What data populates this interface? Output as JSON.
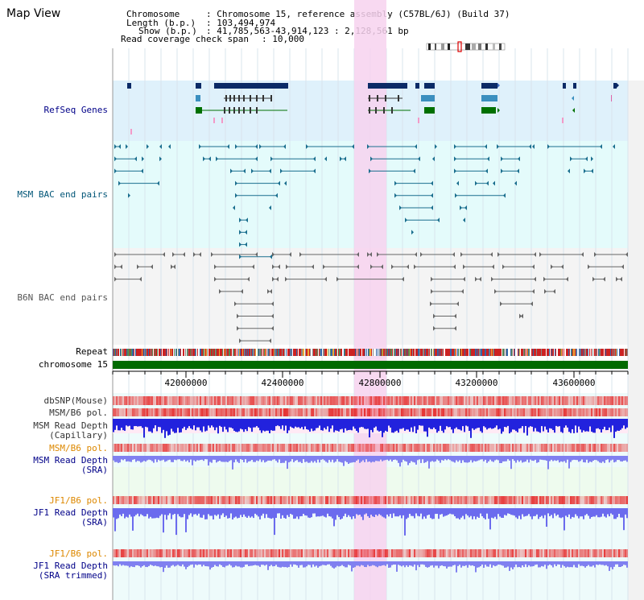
{
  "app_title": "Map View",
  "header": {
    "chromosome_key": "Chromosome",
    "chromosome_value": ": Chromosome 15, reference assembly (C57BL/6J) (Build 37)",
    "length_key": "Length (b.p.)",
    "length_value": ": 103,494,974",
    "show_key": "Show (b.p.)",
    "show_value": ": 41,785,563-43,914,123 : 2,128,561 bp",
    "coverage_key": "Read coverage check span",
    "coverage_value": ": 10,000"
  },
  "tracks": {
    "refseq": "RefSeq Genes",
    "msm_bac": "MSM BAC end pairs",
    "b6n_bac": "B6N BAC end pairs",
    "repeat": "Repeat",
    "chromosome": "chromosome 15",
    "dbsnp": "dbSNP(Mouse)",
    "msm_b6_pol_1": "MSM/B6 pol.",
    "msm_depth_cap_1": "MSM Read Depth",
    "msm_depth_cap_2": "(Capillary)",
    "msm_b6_pol_2": "MSM/B6 pol.",
    "msm_depth_sra_1": "MSM Read Depth",
    "msm_depth_sra_2": "(SRA)",
    "jf1_pol_1": "JF1/B6 pol.",
    "jf1_depth_sra_1": "JF1 Read Depth",
    "jf1_depth_sra_2": "(SRA)",
    "jf1_pol_2": "JF1/B6 pol.",
    "jf1_depth_trim_1": "JF1 Read Depth",
    "jf1_depth_trim_2": "(SRA trimmed)"
  },
  "axis_ticks": [
    "42000000",
    "42400000",
    "42800000",
    "43200000",
    "43600000"
  ],
  "colors": {
    "refseq_bg": "#dff1fb",
    "bac_bg": "#e4fbfb",
    "b6n_bg": "#f4f4f4",
    "highlight": "#f7d2ef",
    "chromosome_bar": "#006a00",
    "gene_dark": "#0b2a66",
    "gene_mid": "#3b8fbf",
    "gene_green": "#007000",
    "label_blue": "#000088",
    "label_orange": "#dd8800",
    "label_teal": "#005577",
    "depth_blue": "#2222dd",
    "depth_light": "#8080f0"
  }
}
